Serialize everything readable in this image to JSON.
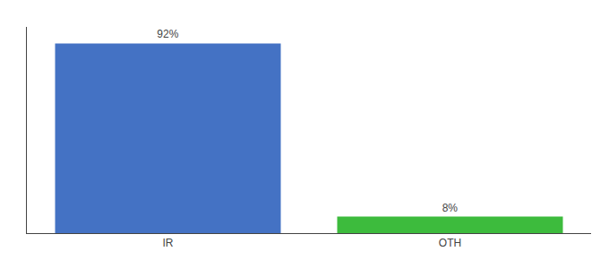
{
  "chart_data": {
    "type": "bar",
    "categories": [
      "IR",
      "OTH"
    ],
    "values": [
      92,
      8
    ],
    "value_labels": [
      "92%",
      "8%"
    ],
    "colors": [
      "#4472c4",
      "#3dbb3d"
    ],
    "ylim": [
      0,
      100
    ],
    "data_labels": true,
    "tick_labels": "x",
    "grid": false
  }
}
